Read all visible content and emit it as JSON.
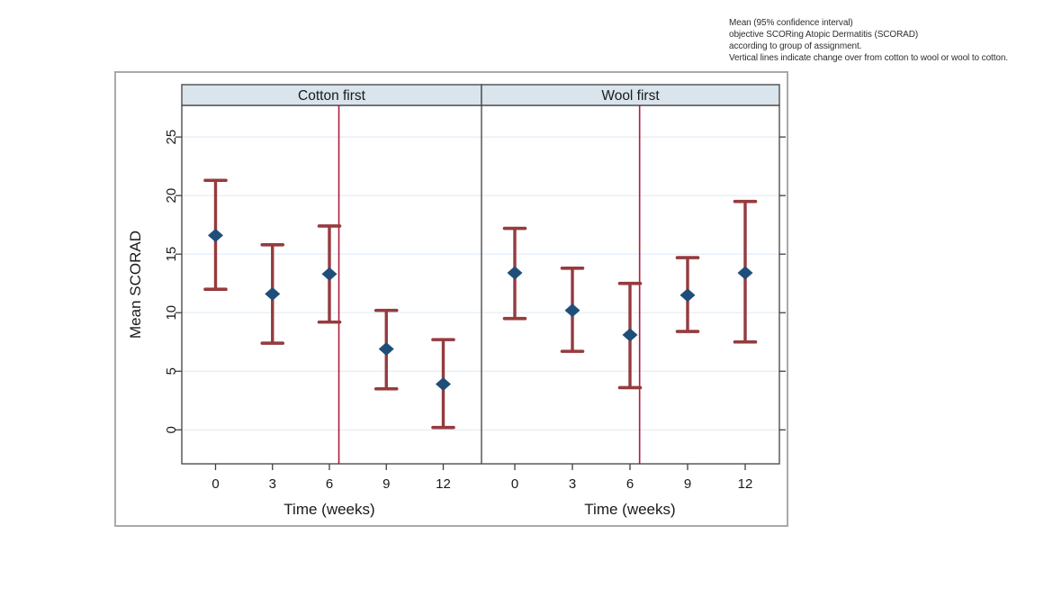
{
  "annotation": {
    "lines": [
      "Mean (95% confidence interval)",
      "objective SCORing Atopic Dermatitis (SCORAD)",
      "according to group of assignment.",
      "Vertical lines indicate change over from cotton to wool or wool to cotton."
    ]
  },
  "chart_data": {
    "type": "scatter",
    "subtype": "mean-with-95ci-errorbars",
    "title": "",
    "xlabel": "Time (weeks)",
    "ylabel": "Mean SCORAD",
    "ylim": [
      -2.9,
      27.7
    ],
    "y_ticks": [
      0,
      5,
      10,
      15,
      20,
      25
    ],
    "x_ticks": [
      0,
      3,
      6,
      9,
      12
    ],
    "grid": "horizontal-only",
    "legend": "none",
    "crossover_week": 6.5,
    "panels": [
      {
        "label": "Cotton first",
        "weeks": [
          0,
          3,
          6,
          9,
          12
        ],
        "mean": [
          16.6,
          11.6,
          13.3,
          6.9,
          3.9
        ],
        "ci_low": [
          12.0,
          7.4,
          9.2,
          3.5,
          0.2
        ],
        "ci_high": [
          21.3,
          15.8,
          17.4,
          10.2,
          7.7
        ]
      },
      {
        "label": "Wool first",
        "weeks": [
          0,
          3,
          6,
          9,
          12
        ],
        "mean": [
          13.4,
          10.2,
          8.1,
          11.5,
          13.4
        ],
        "ci_low": [
          9.5,
          6.7,
          3.6,
          8.4,
          7.5
        ],
        "ci_high": [
          17.2,
          13.8,
          12.5,
          14.7,
          19.5
        ]
      }
    ],
    "colors": {
      "marker": "#1f4e79",
      "error_bar": "#953b3e",
      "crossover_line": "#b01d3f",
      "header_fill": "#d9e4ec",
      "frame": "#404040",
      "gridline": "#e7eff7",
      "tick_text": "#1a1a1a",
      "outer_border": "#a9a9a9"
    }
  }
}
